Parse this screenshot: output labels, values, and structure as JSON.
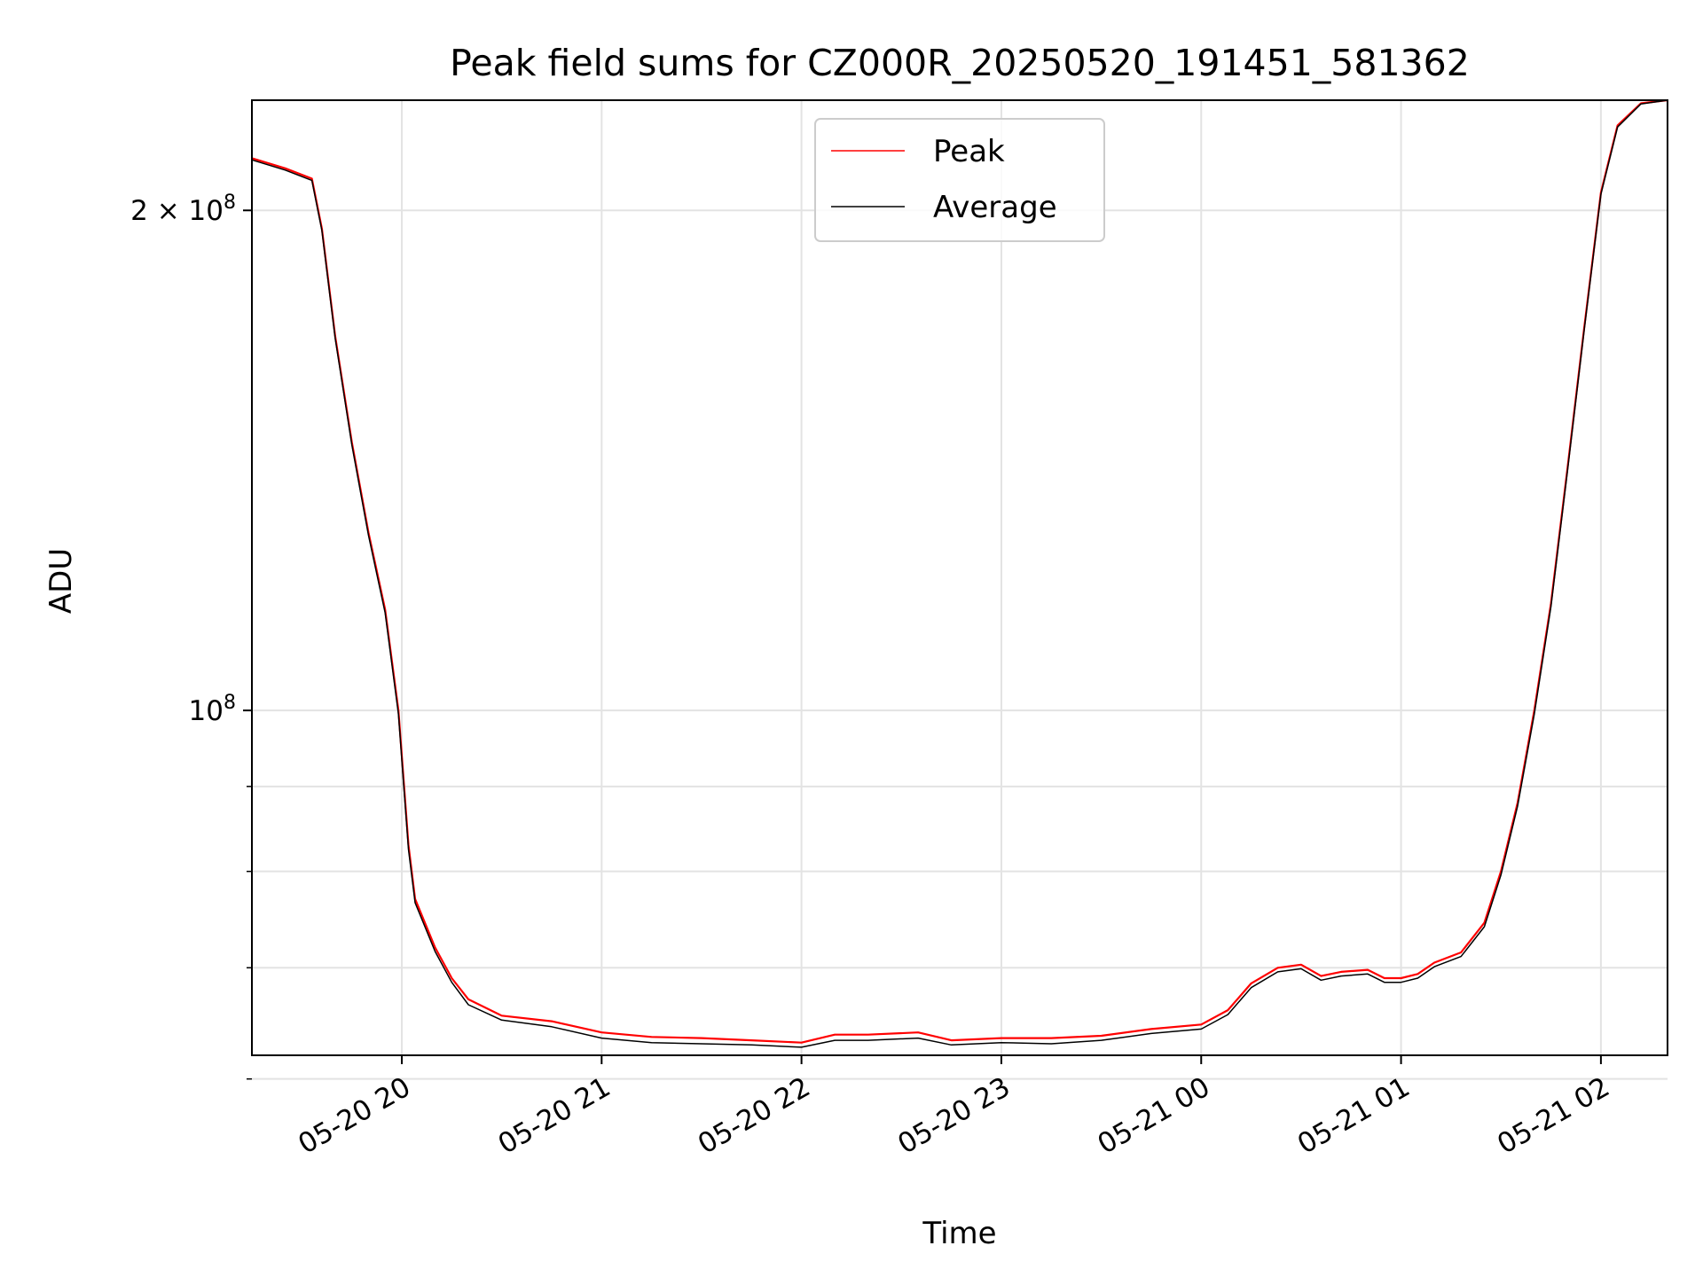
{
  "chart_data": {
    "type": "line",
    "title": "Peak field sums for CZ000R_20250520_191451_581362",
    "xlabel": "Time",
    "ylabel": "ADU",
    "yscale": "log",
    "grid": true,
    "legend_position": "top-center",
    "x_range": [
      "2025-05-20 19:15",
      "2025-05-21 02:20"
    ],
    "y_range": [
      62000000,
      233000000
    ],
    "x_ticks": [
      {
        "value": "2025-05-20 20:00",
        "label": "05-20 20"
      },
      {
        "value": "2025-05-20 21:00",
        "label": "05-20 21"
      },
      {
        "value": "2025-05-20 22:00",
        "label": "05-20 22"
      },
      {
        "value": "2025-05-20 23:00",
        "label": "05-20 23"
      },
      {
        "value": "2025-05-21 00:00",
        "label": "05-21 00"
      },
      {
        "value": "2025-05-21 01:00",
        "label": "05-21 01"
      },
      {
        "value": "2025-05-21 02:00",
        "label": "05-21 02"
      }
    ],
    "y_major_ticks": [
      {
        "value": 100000000,
        "base": "10",
        "exp": "8",
        "coef": ""
      },
      {
        "value": 200000000,
        "base": "10",
        "exp": "8",
        "coef": "2 × "
      }
    ],
    "y_minor_ticks": [
      60000000,
      70000000,
      80000000,
      90000000
    ],
    "series": [
      {
        "name": "Peak",
        "color": "#ff0000",
        "x": [
          "2025-05-20 19:15",
          "2025-05-20 19:25",
          "2025-05-20 19:33",
          "2025-05-20 19:36",
          "2025-05-20 19:40",
          "2025-05-20 19:45",
          "2025-05-20 19:50",
          "2025-05-20 19:55",
          "2025-05-20 19:59",
          "2025-05-20 20:02",
          "2025-05-20 20:04",
          "2025-05-20 20:10",
          "2025-05-20 20:15",
          "2025-05-20 20:20",
          "2025-05-20 20:30",
          "2025-05-20 20:45",
          "2025-05-20 21:00",
          "2025-05-20 21:15",
          "2025-05-20 21:30",
          "2025-05-20 21:45",
          "2025-05-20 22:00",
          "2025-05-20 22:10",
          "2025-05-20 22:20",
          "2025-05-20 22:35",
          "2025-05-20 22:45",
          "2025-05-20 23:00",
          "2025-05-20 23:15",
          "2025-05-20 23:30",
          "2025-05-20 23:45",
          "2025-05-21 00:00",
          "2025-05-21 00:08",
          "2025-05-21 00:15",
          "2025-05-21 00:23",
          "2025-05-21 00:30",
          "2025-05-21 00:36",
          "2025-05-21 00:42",
          "2025-05-21 00:50",
          "2025-05-21 00:55",
          "2025-05-21 01:00",
          "2025-05-21 01:05",
          "2025-05-21 01:10",
          "2025-05-21 01:18",
          "2025-05-21 01:25",
          "2025-05-21 01:30",
          "2025-05-21 01:35",
          "2025-05-21 01:40",
          "2025-05-21 01:45",
          "2025-05-21 01:50",
          "2025-05-21 01:55",
          "2025-05-21 02:00",
          "2025-05-21 02:05",
          "2025-05-21 02:12",
          "2025-05-21 02:20"
        ],
        "y": [
          215000000,
          212000000,
          209000000,
          195000000,
          168000000,
          145000000,
          128000000,
          115000000,
          100000000,
          83000000,
          77000000,
          72000000,
          69000000,
          67000000,
          65500000,
          65000000,
          64000000,
          63600000,
          63500000,
          63300000,
          63100000,
          63800000,
          63800000,
          64000000,
          63300000,
          63500000,
          63500000,
          63700000,
          64300000,
          64700000,
          66000000,
          68500000,
          70000000,
          70300000,
          69200000,
          69600000,
          69800000,
          69000000,
          69000000,
          69400000,
          70500000,
          71500000,
          74500000,
          80000000,
          88000000,
          100000000,
          116000000,
          140000000,
          170000000,
          205000000,
          225000000,
          232000000,
          233000000
        ]
      },
      {
        "name": "Average",
        "color": "#000000",
        "x": [
          "2025-05-20 19:15",
          "2025-05-20 19:25",
          "2025-05-20 19:33",
          "2025-05-20 19:36",
          "2025-05-20 19:40",
          "2025-05-20 19:45",
          "2025-05-20 19:50",
          "2025-05-20 19:55",
          "2025-05-20 19:59",
          "2025-05-20 20:02",
          "2025-05-20 20:04",
          "2025-05-20 20:10",
          "2025-05-20 20:15",
          "2025-05-20 20:20",
          "2025-05-20 20:30",
          "2025-05-20 20:45",
          "2025-05-20 21:00",
          "2025-05-20 21:15",
          "2025-05-20 21:30",
          "2025-05-20 21:45",
          "2025-05-20 22:00",
          "2025-05-20 22:10",
          "2025-05-20 22:20",
          "2025-05-20 22:35",
          "2025-05-20 22:45",
          "2025-05-20 23:00",
          "2025-05-20 23:15",
          "2025-05-20 23:30",
          "2025-05-20 23:45",
          "2025-05-21 00:00",
          "2025-05-21 00:08",
          "2025-05-21 00:15",
          "2025-05-21 00:23",
          "2025-05-21 00:30",
          "2025-05-21 00:36",
          "2025-05-21 00:42",
          "2025-05-21 00:50",
          "2025-05-21 00:55",
          "2025-05-21 01:00",
          "2025-05-21 01:05",
          "2025-05-21 01:10",
          "2025-05-21 01:18",
          "2025-05-21 01:25",
          "2025-05-21 01:30",
          "2025-05-21 01:35",
          "2025-05-21 01:40",
          "2025-05-21 01:45",
          "2025-05-21 01:50",
          "2025-05-21 01:55",
          "2025-05-21 02:00",
          "2025-05-21 02:05",
          "2025-05-21 02:12",
          "2025-05-21 02:20"
        ],
        "y": [
          214500000,
          211500000,
          208500000,
          194500000,
          167500000,
          144500000,
          127500000,
          114500000,
          99500000,
          82500000,
          76600000,
          71600000,
          68600000,
          66500000,
          65100000,
          64500000,
          63500000,
          63100000,
          63000000,
          62900000,
          62700000,
          63300000,
          63300000,
          63500000,
          62900000,
          63100000,
          63000000,
          63300000,
          63900000,
          64300000,
          65600000,
          68100000,
          69600000,
          69900000,
          68800000,
          69200000,
          69400000,
          68600000,
          68600000,
          69000000,
          70100000,
          71100000,
          74100000,
          79600000,
          87600000,
          99500000,
          115500000,
          139500000,
          169500000,
          204500000,
          224500000,
          231800000,
          233000000
        ]
      }
    ]
  }
}
